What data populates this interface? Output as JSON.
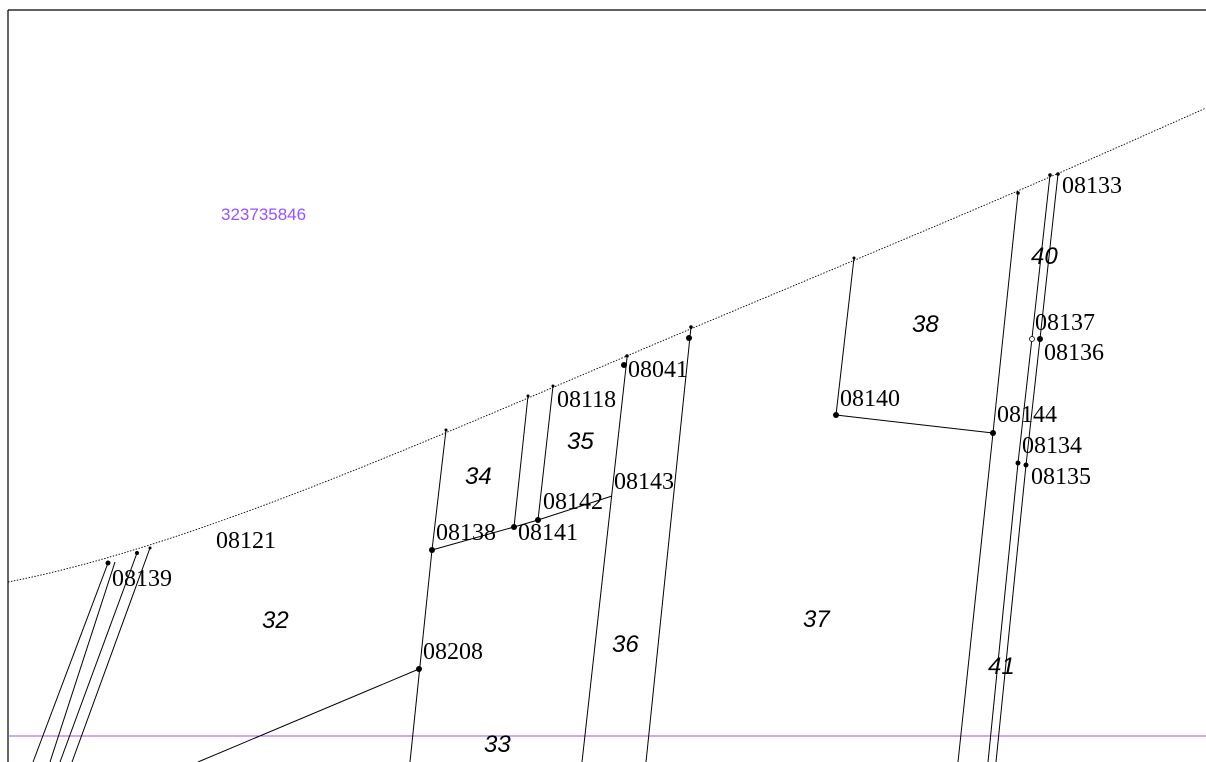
{
  "map": {
    "colors": {
      "background": "#ffffff",
      "frame": "#000000",
      "line": "#000000",
      "boundary": "#9a52ff",
      "parcel_id": "#9a52ff"
    },
    "parcel_id": "323735846",
    "parcels": {
      "p32": "32",
      "p33": "33",
      "p34": "34",
      "p35": "35",
      "p36": "36",
      "p37": "37",
      "p38": "38",
      "p40": "40",
      "p41": "41"
    },
    "points": {
      "p08133": "08133",
      "p08137": "08137",
      "p08136": "08136",
      "p08041": "08041",
      "p08118": "08118",
      "p08140": "08140",
      "p08144": "08144",
      "p08134": "08134",
      "p08135": "08135",
      "p08143": "08143",
      "p08142": "08142",
      "p08138": "08138",
      "p08141": "08141",
      "p08121": "08121",
      "p08139": "08139",
      "p08208": "08208"
    }
  }
}
